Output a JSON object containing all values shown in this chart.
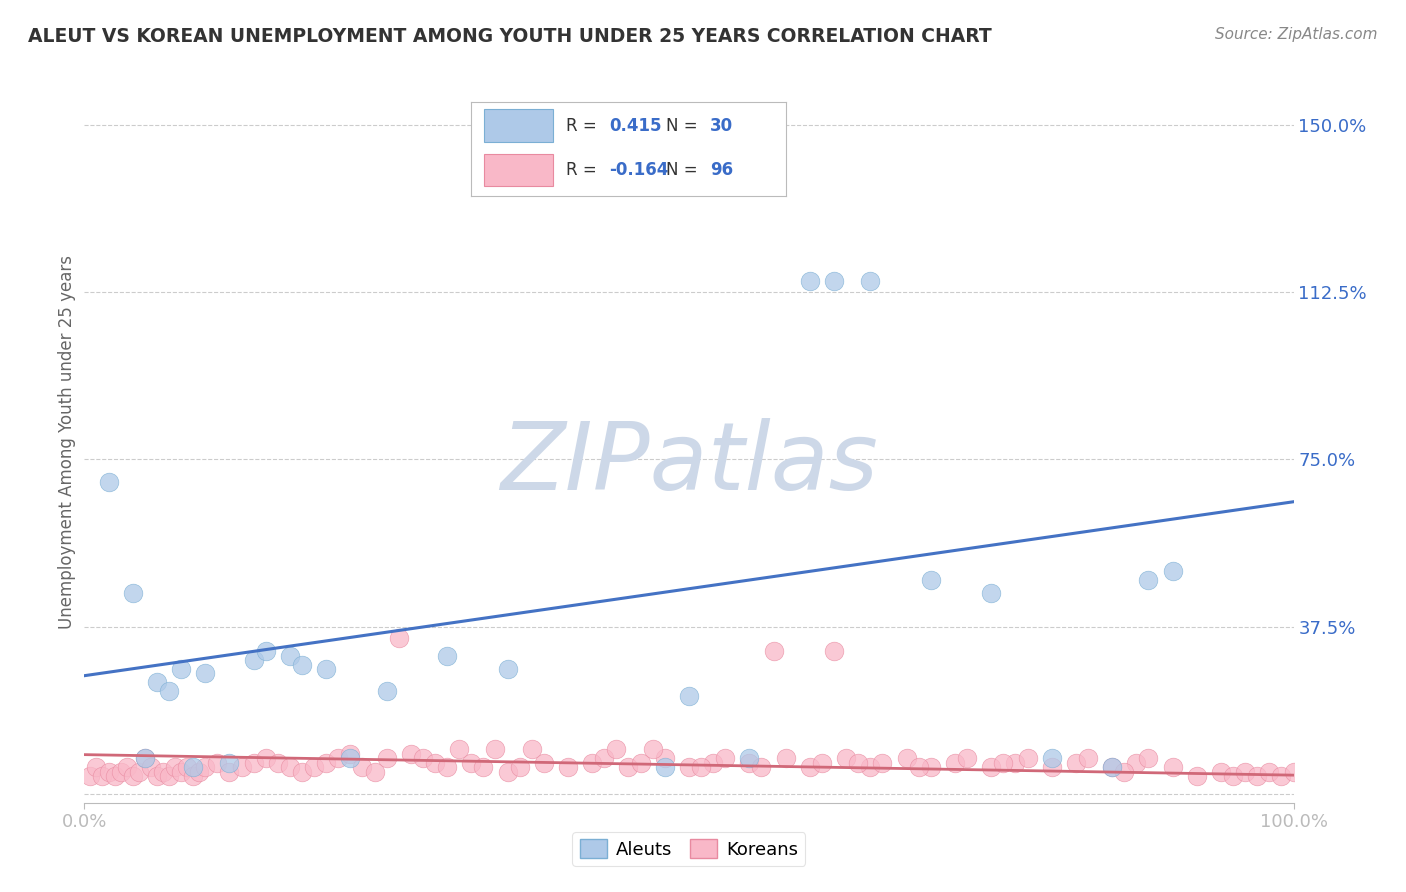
{
  "title": "ALEUT VS KOREAN UNEMPLOYMENT AMONG YOUTH UNDER 25 YEARS CORRELATION CHART",
  "source": "Source: ZipAtlas.com",
  "ylabel": "Unemployment Among Youth under 25 years",
  "xlim": [
    0.0,
    1.0
  ],
  "ylim": [
    -0.02,
    1.6
  ],
  "ytick_vals": [
    0.0,
    0.375,
    0.75,
    1.125,
    1.5
  ],
  "ytick_labels": [
    "",
    "37.5%",
    "75.0%",
    "112.5%",
    "150.0%"
  ],
  "xtick_vals": [
    0.0,
    1.0
  ],
  "xtick_labels": [
    "0.0%",
    "100.0%"
  ],
  "aleut_R": 0.415,
  "aleut_N": 30,
  "korean_R": -0.164,
  "korean_N": 96,
  "aleut_color": "#aec9e8",
  "aleut_edge": "#7bafd4",
  "korean_color": "#f9b8c8",
  "korean_edge": "#e88aa0",
  "trend_aleut_color": "#4472c4",
  "trend_korean_color": "#d06878",
  "aleut_trend_x0": 0.0,
  "aleut_trend_y0": 0.265,
  "aleut_trend_x1": 1.0,
  "aleut_trend_y1": 0.655,
  "korean_trend_x0": 0.0,
  "korean_trend_y0": 0.088,
  "korean_trend_x1": 1.0,
  "korean_trend_y1": 0.042,
  "watermark_color": "#cdd8e8",
  "legend_R_color": "#3a6cc8",
  "grid_color": "#cccccc",
  "background": "#ffffff",
  "title_color": "#333333",
  "source_color": "#888888",
  "aleut_x": [
    0.02,
    0.04,
    0.05,
    0.06,
    0.07,
    0.08,
    0.09,
    0.1,
    0.12,
    0.14,
    0.15,
    0.17,
    0.18,
    0.2,
    0.22,
    0.25,
    0.3,
    0.35,
    0.48,
    0.5,
    0.55,
    0.6,
    0.62,
    0.65,
    0.7,
    0.75,
    0.8,
    0.85,
    0.88,
    0.9
  ],
  "aleut_y": [
    0.7,
    0.45,
    0.08,
    0.25,
    0.23,
    0.28,
    0.06,
    0.27,
    0.07,
    0.3,
    0.32,
    0.31,
    0.29,
    0.28,
    0.08,
    0.23,
    0.31,
    0.28,
    0.06,
    0.22,
    0.08,
    1.15,
    1.15,
    1.15,
    0.48,
    0.45,
    0.08,
    0.06,
    0.48,
    0.5
  ],
  "korean_x": [
    0.005,
    0.01,
    0.015,
    0.02,
    0.025,
    0.03,
    0.035,
    0.04,
    0.045,
    0.05,
    0.055,
    0.06,
    0.065,
    0.07,
    0.075,
    0.08,
    0.085,
    0.09,
    0.095,
    0.1,
    0.11,
    0.12,
    0.13,
    0.14,
    0.15,
    0.16,
    0.17,
    0.18,
    0.19,
    0.2,
    0.21,
    0.22,
    0.23,
    0.24,
    0.25,
    0.27,
    0.28,
    0.29,
    0.3,
    0.32,
    0.33,
    0.35,
    0.36,
    0.38,
    0.4,
    0.42,
    0.43,
    0.45,
    0.46,
    0.48,
    0.5,
    0.52,
    0.53,
    0.55,
    0.56,
    0.57,
    0.58,
    0.6,
    0.61,
    0.62,
    0.63,
    0.65,
    0.66,
    0.68,
    0.7,
    0.72,
    0.73,
    0.75,
    0.77,
    0.78,
    0.8,
    0.82,
    0.83,
    0.85,
    0.87,
    0.88,
    0.9,
    0.92,
    0.94,
    0.95,
    0.96,
    0.97,
    0.98,
    0.99,
    1.0,
    0.26,
    0.31,
    0.34,
    0.37,
    0.44,
    0.47,
    0.51,
    0.64,
    0.69,
    0.76,
    0.86
  ],
  "korean_y": [
    0.04,
    0.06,
    0.04,
    0.05,
    0.04,
    0.05,
    0.06,
    0.04,
    0.05,
    0.08,
    0.06,
    0.04,
    0.05,
    0.04,
    0.06,
    0.05,
    0.06,
    0.04,
    0.05,
    0.06,
    0.07,
    0.05,
    0.06,
    0.07,
    0.08,
    0.07,
    0.06,
    0.05,
    0.06,
    0.07,
    0.08,
    0.09,
    0.06,
    0.05,
    0.08,
    0.09,
    0.08,
    0.07,
    0.06,
    0.07,
    0.06,
    0.05,
    0.06,
    0.07,
    0.06,
    0.07,
    0.08,
    0.06,
    0.07,
    0.08,
    0.06,
    0.07,
    0.08,
    0.07,
    0.06,
    0.32,
    0.08,
    0.06,
    0.07,
    0.32,
    0.08,
    0.06,
    0.07,
    0.08,
    0.06,
    0.07,
    0.08,
    0.06,
    0.07,
    0.08,
    0.06,
    0.07,
    0.08,
    0.06,
    0.07,
    0.08,
    0.06,
    0.04,
    0.05,
    0.04,
    0.05,
    0.04,
    0.05,
    0.04,
    0.05,
    0.35,
    0.1,
    0.1,
    0.1,
    0.1,
    0.1,
    0.06,
    0.07,
    0.06,
    0.07,
    0.05
  ]
}
